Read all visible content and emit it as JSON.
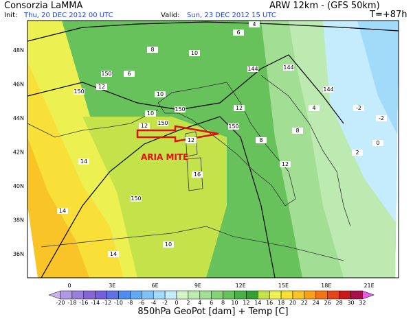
{
  "header": {
    "title": "Consorzia LaMMA",
    "model": "ARW 12km - (GFS 50km)",
    "init_label": "Init:",
    "init": "Thu, 20 DEC 2012  00 UTC",
    "valid_label": "Valid:",
    "valid": "Sun, 23 DEC 2012  15 UTC",
    "lead": "T=+87h"
  },
  "map": {
    "lat_labels": [
      "48N",
      "46N",
      "44N",
      "42N",
      "40N",
      "38N",
      "36N"
    ],
    "lon_labels": [
      "0",
      "3E",
      "6E",
      "9E",
      "12E",
      "15E",
      "18E",
      "21E"
    ],
    "annotation": "ARIA MITE",
    "contour_labels": [
      "150",
      "150",
      "150",
      "150",
      "150",
      "150",
      "144",
      "144",
      "144",
      "12",
      "12",
      "12",
      "10",
      "10",
      "14",
      "14",
      "14",
      "16",
      "12",
      "8",
      "8",
      "8",
      "6",
      "6",
      "4",
      "4",
      "2",
      "0",
      "-2",
      "-2",
      "10",
      "10",
      "12"
    ]
  },
  "colorbar": {
    "labels": [
      -20,
      -18,
      -16,
      -14,
      -12,
      -10,
      -8,
      -6,
      -4,
      -2,
      0,
      2,
      4,
      6,
      8,
      10,
      12,
      14,
      16,
      18,
      20,
      22,
      24,
      26,
      28,
      30,
      32
    ],
    "colors": [
      "#c8b4ec",
      "#b098e4",
      "#9a7edc",
      "#8666d4",
      "#7460dc",
      "#5f72e4",
      "#4f8cee",
      "#62a8f4",
      "#80c2f8",
      "#a2dafa",
      "#c4ecfc",
      "#d4f4c8",
      "#bceab0",
      "#a2de94",
      "#86d078",
      "#68c25c",
      "#48b044",
      "#34a034",
      "#c4e24a",
      "#ecf050",
      "#f8e038",
      "#f8c428",
      "#f8a018",
      "#f27414",
      "#e2461a",
      "#c81818",
      "#a8104c",
      "#e45ce8"
    ],
    "caption": "850hPa GeoPot [dam] + Temp [C]"
  }
}
